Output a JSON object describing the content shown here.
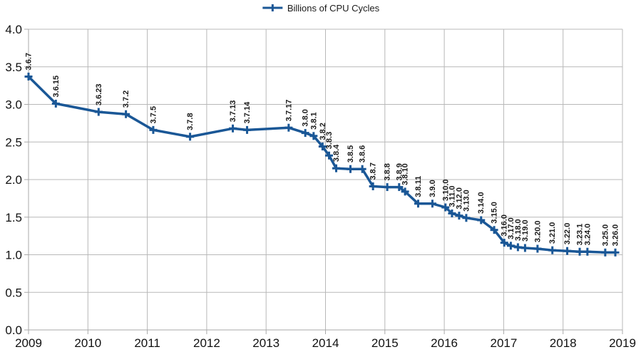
{
  "legend": {
    "label": "Billions of CPU Cycles"
  },
  "colors": {
    "series": "#1a5796",
    "grid": "#b8b8b8",
    "axis": "#a8a8a8",
    "tick_label": "#111111",
    "point_label": "#1a1a1a",
    "background": "#ffffff"
  },
  "chart_data": {
    "type": "line",
    "title": "",
    "series_name": "Billions of CPU Cycles",
    "marker": "plus",
    "grid": true,
    "legend_position": "top-center",
    "xlabel": "",
    "ylabel": "",
    "xlim": [
      2009,
      2019
    ],
    "ylim": [
      0.0,
      4.0
    ],
    "x_ticks": [
      {
        "value": 2009,
        "label": "2009"
      },
      {
        "value": 2010,
        "label": "2010"
      },
      {
        "value": 2011,
        "label": "2011"
      },
      {
        "value": 2012,
        "label": "2012"
      },
      {
        "value": 2013,
        "label": "2013"
      },
      {
        "value": 2014,
        "label": "2014"
      },
      {
        "value": 2015,
        "label": "2015"
      },
      {
        "value": 2016,
        "label": "2016"
      },
      {
        "value": 2017,
        "label": "2017"
      },
      {
        "value": 2018,
        "label": "2018"
      },
      {
        "value": 2019,
        "label": "2019"
      }
    ],
    "y_ticks": [
      {
        "value": 0.0,
        "label": "0.0"
      },
      {
        "value": 0.5,
        "label": "0.5"
      },
      {
        "value": 1.0,
        "label": "1.0"
      },
      {
        "value": 1.5,
        "label": "1.5"
      },
      {
        "value": 2.0,
        "label": "2.0"
      },
      {
        "value": 2.5,
        "label": "2.5"
      },
      {
        "value": 3.0,
        "label": "3.0"
      },
      {
        "value": 3.5,
        "label": "3.5"
      },
      {
        "value": 4.0,
        "label": "4.0"
      }
    ],
    "points": [
      {
        "label": "3.6.7",
        "x": 2009.0,
        "y": 3.37
      },
      {
        "label": "3.6.15",
        "x": 2009.46,
        "y": 3.01
      },
      {
        "label": "3.6.23",
        "x": 2010.18,
        "y": 2.9
      },
      {
        "label": "3.7.2",
        "x": 2010.64,
        "y": 2.87
      },
      {
        "label": "3.7.5",
        "x": 2011.1,
        "y": 2.66
      },
      {
        "label": "3.7.8",
        "x": 2011.72,
        "y": 2.57
      },
      {
        "label": "3.7.13",
        "x": 2012.44,
        "y": 2.68
      },
      {
        "label": "3.7.14",
        "x": 2012.68,
        "y": 2.66
      },
      {
        "label": "3.7.17",
        "x": 2013.38,
        "y": 2.69
      },
      {
        "label": "3.8.0",
        "x": 2013.66,
        "y": 2.62
      },
      {
        "label": "3.8.1",
        "x": 2013.8,
        "y": 2.58
      },
      {
        "label": "3.8.2",
        "x": 2013.95,
        "y": 2.44
      },
      {
        "label": "3.8.3",
        "x": 2014.06,
        "y": 2.32
      },
      {
        "label": "3.8.4",
        "x": 2014.18,
        "y": 2.15
      },
      {
        "label": "3.8.5",
        "x": 2014.42,
        "y": 2.14
      },
      {
        "label": "3.8.6",
        "x": 2014.62,
        "y": 2.14
      },
      {
        "label": "3.8.7",
        "x": 2014.8,
        "y": 1.91
      },
      {
        "label": "3.8.8",
        "x": 2015.04,
        "y": 1.9
      },
      {
        "label": "3.8.9",
        "x": 2015.24,
        "y": 1.9
      },
      {
        "label": "3.8.10",
        "x": 2015.34,
        "y": 1.84
      },
      {
        "label": "3.8.11",
        "x": 2015.56,
        "y": 1.68
      },
      {
        "label": "3.9.0",
        "x": 2015.8,
        "y": 1.68
      },
      {
        "label": "3.10.0",
        "x": 2016.02,
        "y": 1.63
      },
      {
        "label": "3.11.0",
        "x": 2016.13,
        "y": 1.55
      },
      {
        "label": "3.12.0",
        "x": 2016.25,
        "y": 1.52
      },
      {
        "label": "3.13.0",
        "x": 2016.37,
        "y": 1.49
      },
      {
        "label": "3.14.0",
        "x": 2016.62,
        "y": 1.46
      },
      {
        "label": "3.15.0",
        "x": 2016.84,
        "y": 1.33
      },
      {
        "label": "3.16.0",
        "x": 2017.01,
        "y": 1.16
      },
      {
        "label": "3.17.0",
        "x": 2017.12,
        "y": 1.12
      },
      {
        "label": "3.18.0",
        "x": 2017.24,
        "y": 1.1
      },
      {
        "label": "3.19.0",
        "x": 2017.36,
        "y": 1.09
      },
      {
        "label": "3.20.0",
        "x": 2017.57,
        "y": 1.08
      },
      {
        "label": "3.21.0",
        "x": 2017.82,
        "y": 1.06
      },
      {
        "label": "3.22.0",
        "x": 2018.07,
        "y": 1.05
      },
      {
        "label": "3.23.1",
        "x": 2018.28,
        "y": 1.04
      },
      {
        "label": "3.24.0",
        "x": 2018.41,
        "y": 1.04
      },
      {
        "label": "3.25.0",
        "x": 2018.71,
        "y": 1.03
      },
      {
        "label": "3.26.0",
        "x": 2018.88,
        "y": 1.03
      }
    ]
  }
}
